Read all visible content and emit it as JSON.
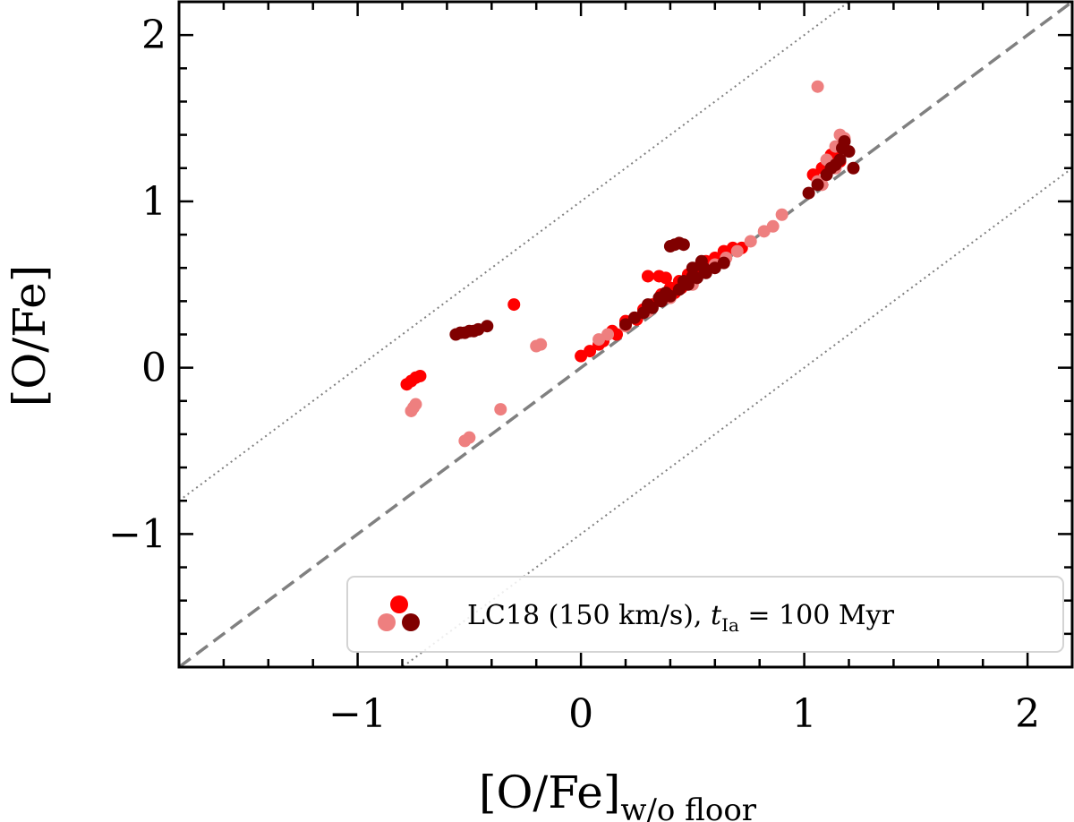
{
  "chart_data": {
    "type": "scatter",
    "title": "",
    "xlabel_main": "[O/Fe]",
    "xlabel_sub": "w/o floor",
    "ylabel": "[O/Fe]",
    "xlim": [
      -1.8,
      2.2
    ],
    "ylim": [
      -1.8,
      2.2
    ],
    "xticks": [
      -1,
      0,
      1,
      2
    ],
    "yticks": [
      -1,
      0,
      1,
      2
    ],
    "xtick_labels": [
      "−1",
      "0",
      "1",
      "2"
    ],
    "ytick_labels": [
      "−1",
      "0",
      "1",
      "2"
    ],
    "grid": false,
    "reference_lines": [
      {
        "name": "one-to-one",
        "style": "dashed",
        "color": "#808080",
        "offset": 0
      },
      {
        "name": "plus-one",
        "style": "dotted",
        "color": "#808080",
        "offset": 1
      },
      {
        "name": "minus-one",
        "style": "dotted",
        "color": "#808080",
        "offset": -1
      }
    ],
    "legend": {
      "placement": "lower-right",
      "label_prefix": "LC18 (150 km/s), ",
      "label_var": "t",
      "label_var_sub": "Ia",
      "label_suffix": " = 100 Myr",
      "marker_colors": [
        "#ff0000",
        "#ee7f7f",
        "#800000"
      ]
    },
    "series": [
      {
        "name": "red",
        "color": "#ff0000",
        "points": [
          [
            -0.78,
            -0.1
          ],
          [
            -0.76,
            -0.08
          ],
          [
            -0.74,
            -0.06
          ],
          [
            -0.72,
            -0.05
          ],
          [
            -0.3,
            0.38
          ],
          [
            0.0,
            0.07
          ],
          [
            0.04,
            0.1
          ],
          [
            0.08,
            0.14
          ],
          [
            0.1,
            0.16
          ],
          [
            0.14,
            0.22
          ],
          [
            0.16,
            0.2
          ],
          [
            0.2,
            0.28
          ],
          [
            0.24,
            0.3
          ],
          [
            0.28,
            0.35
          ],
          [
            0.32,
            0.38
          ],
          [
            0.36,
            0.44
          ],
          [
            0.4,
            0.48
          ],
          [
            0.44,
            0.52
          ],
          [
            0.48,
            0.56
          ],
          [
            0.52,
            0.6
          ],
          [
            0.56,
            0.64
          ],
          [
            0.6,
            0.66
          ],
          [
            0.64,
            0.7
          ],
          [
            0.68,
            0.72
          ],
          [
            0.72,
            0.72
          ],
          [
            0.35,
            0.55
          ],
          [
            0.38,
            0.54
          ],
          [
            0.3,
            0.55
          ],
          [
            0.45,
            0.48
          ],
          [
            0.5,
            0.52
          ],
          [
            0.55,
            0.58
          ],
          [
            0.2,
            0.26
          ],
          [
            0.25,
            0.29
          ],
          [
            0.42,
            0.45
          ],
          [
            0.58,
            0.62
          ],
          [
            1.04,
            1.16
          ],
          [
            1.08,
            1.2
          ],
          [
            1.12,
            1.28
          ],
          [
            1.14,
            1.3
          ],
          [
            1.16,
            1.24
          ]
        ]
      },
      {
        "name": "light-red",
        "color": "#ee7f7f",
        "points": [
          [
            -0.76,
            -0.26
          ],
          [
            -0.75,
            -0.24
          ],
          [
            -0.74,
            -0.22
          ],
          [
            -0.5,
            -0.42
          ],
          [
            -0.52,
            -0.44
          ],
          [
            -0.36,
            -0.25
          ],
          [
            -0.18,
            0.14
          ],
          [
            -0.2,
            0.13
          ],
          [
            0.12,
            0.2
          ],
          [
            0.2,
            0.25
          ],
          [
            0.3,
            0.34
          ],
          [
            0.4,
            0.42
          ],
          [
            0.5,
            0.5
          ],
          [
            0.6,
            0.62
          ],
          [
            0.7,
            0.7
          ],
          [
            0.76,
            0.76
          ],
          [
            0.82,
            0.82
          ],
          [
            0.86,
            0.85
          ],
          [
            0.9,
            0.92
          ],
          [
            1.06,
            1.69
          ],
          [
            1.1,
            1.25
          ],
          [
            1.12,
            1.22
          ],
          [
            1.14,
            1.33
          ],
          [
            1.16,
            1.4
          ],
          [
            1.18,
            1.38
          ],
          [
            1.06,
            1.12
          ],
          [
            1.08,
            1.1
          ],
          [
            1.14,
            1.2
          ],
          [
            0.08,
            0.17
          ],
          [
            0.65,
            0.66
          ]
        ]
      },
      {
        "name": "dark-red",
        "color": "#800000",
        "points": [
          [
            -0.56,
            0.2
          ],
          [
            -0.54,
            0.21
          ],
          [
            -0.52,
            0.21
          ],
          [
            -0.5,
            0.22
          ],
          [
            -0.48,
            0.22
          ],
          [
            -0.46,
            0.23
          ],
          [
            -0.42,
            0.25
          ],
          [
            0.2,
            0.26
          ],
          [
            0.24,
            0.3
          ],
          [
            0.28,
            0.33
          ],
          [
            0.32,
            0.36
          ],
          [
            0.36,
            0.4
          ],
          [
            0.4,
            0.43
          ],
          [
            0.44,
            0.47
          ],
          [
            0.48,
            0.5
          ],
          [
            0.52,
            0.54
          ],
          [
            0.56,
            0.57
          ],
          [
            0.6,
            0.6
          ],
          [
            0.64,
            0.63
          ],
          [
            0.42,
            0.74
          ],
          [
            0.44,
            0.75
          ],
          [
            0.46,
            0.74
          ],
          [
            0.4,
            0.73
          ],
          [
            0.5,
            0.6
          ],
          [
            0.54,
            0.64
          ],
          [
            0.38,
            0.45
          ],
          [
            0.46,
            0.52
          ],
          [
            0.3,
            0.38
          ],
          [
            0.35,
            0.42
          ],
          [
            0.5,
            0.55
          ],
          [
            0.55,
            0.6
          ],
          [
            1.02,
            1.05
          ],
          [
            1.06,
            1.1
          ],
          [
            1.1,
            1.16
          ],
          [
            1.12,
            1.2
          ],
          [
            1.14,
            1.22
          ],
          [
            1.16,
            1.25
          ],
          [
            1.17,
            1.32
          ],
          [
            1.18,
            1.36
          ],
          [
            1.2,
            1.3
          ],
          [
            1.22,
            1.2
          ]
        ]
      }
    ]
  }
}
